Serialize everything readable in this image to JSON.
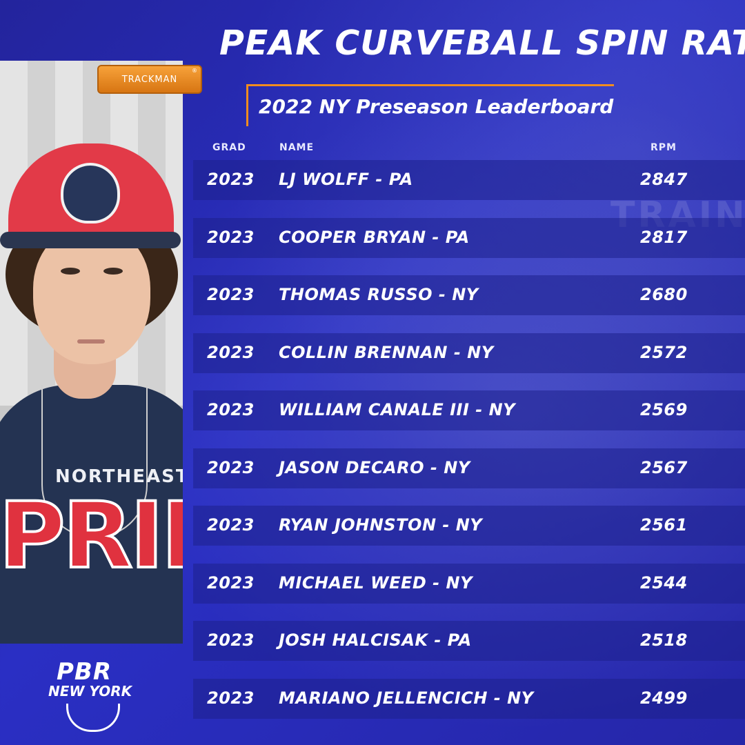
{
  "title": "PEAK CURVEBALL SPIN RATE",
  "subtitle": "2022 NY Preseason Leaderboard",
  "sponsor": "TRACKMAN",
  "sponsor_mark": "®",
  "columns": {
    "grad": "GRAD",
    "name": "NAME",
    "rpm": "RPM"
  },
  "rows": [
    {
      "grad": "2023",
      "name": "LJ WOLFF - PA",
      "rpm": "2847"
    },
    {
      "grad": "2023",
      "name": "COOPER BRYAN - PA",
      "rpm": "2817"
    },
    {
      "grad": "2023",
      "name": "THOMAS RUSSO - NY",
      "rpm": "2680"
    },
    {
      "grad": "2023",
      "name": "COLLIN BRENNAN - NY",
      "rpm": "2572"
    },
    {
      "grad": "2023",
      "name": "WILLIAM CANALE III - NY",
      "rpm": "2569"
    },
    {
      "grad": "2023",
      "name": "JASON DECARO - NY",
      "rpm": "2567"
    },
    {
      "grad": "2023",
      "name": "RYAN JOHNSTON - NY",
      "rpm": "2561"
    },
    {
      "grad": "2023",
      "name": "MICHAEL WEED - NY",
      "rpm": "2544"
    },
    {
      "grad": "2023",
      "name": "JOSH HALCISAK - PA",
      "rpm": "2518"
    },
    {
      "grad": "2023",
      "name": "MARIANO JELLENCICH - NY",
      "rpm": "2499"
    }
  ],
  "photo": {
    "shirt_line1": "NORTHEAST",
    "shirt_line2": "PRIDE"
  },
  "background_text": "TRAIN",
  "logo": {
    "line1": "PBR",
    "line2": "NEW YORK"
  },
  "colors": {
    "background": "#2a2fc4",
    "accent": "#f28c1e",
    "row": "#1e208c",
    "cap": "#e23a48"
  }
}
